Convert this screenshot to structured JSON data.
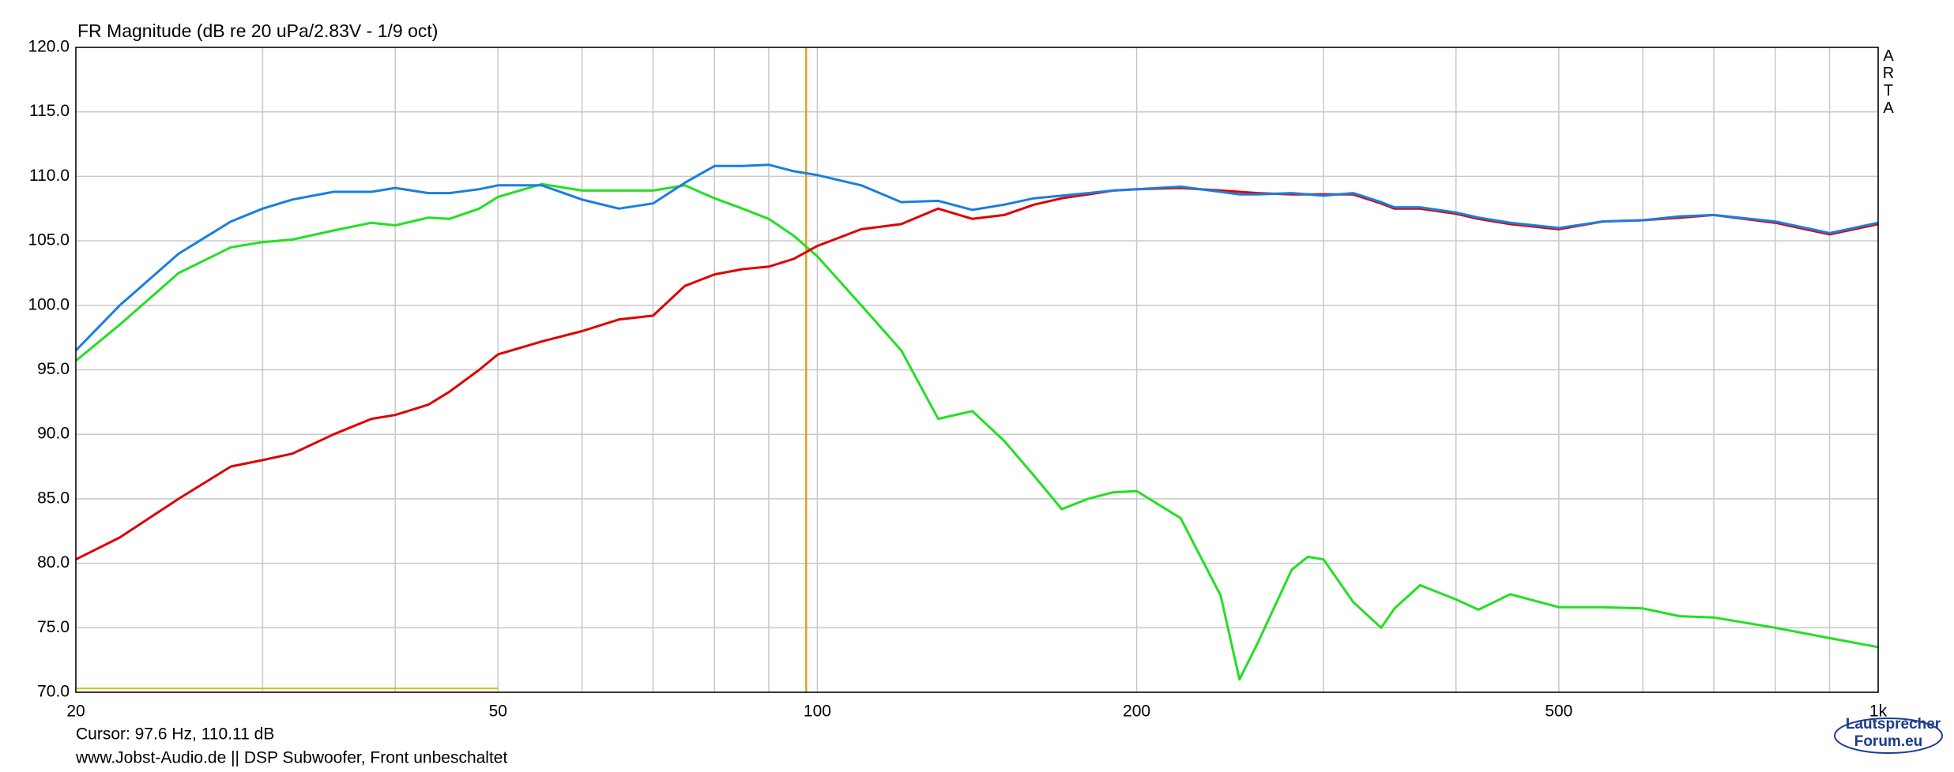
{
  "chart_data": {
    "type": "line",
    "title": "FR Magnitude (dB re 20 uPa/2.83V - 1/9 oct)",
    "x": [
      20,
      22,
      25,
      28,
      30,
      32,
      35,
      38,
      40,
      43,
      45,
      48,
      50,
      55,
      60,
      65,
      70,
      75,
      80,
      85,
      90,
      95,
      100,
      110,
      120,
      130,
      140,
      150,
      160,
      170,
      180,
      190,
      200,
      220,
      240,
      250,
      260,
      280,
      290,
      300,
      320,
      340,
      350,
      370,
      400,
      420,
      450,
      500,
      550,
      600,
      650,
      700,
      800,
      900,
      1000
    ],
    "series": [
      {
        "color": "#e00000",
        "values": [
          80.3,
          82.0,
          85.0,
          87.5,
          88.0,
          88.5,
          90.0,
          91.2,
          91.5,
          92.3,
          93.3,
          95.0,
          96.2,
          97.2,
          98.0,
          98.9,
          99.2,
          101.5,
          102.4,
          102.8,
          103.0,
          103.6,
          104.6,
          105.9,
          106.3,
          107.5,
          106.7,
          107.0,
          107.8,
          108.3,
          108.6,
          108.9,
          109.0,
          109.1,
          108.9,
          108.8,
          108.7,
          108.6,
          108.6,
          108.6,
          108.6,
          107.9,
          107.5,
          107.5,
          107.1,
          106.7,
          106.3,
          105.9,
          106.5,
          106.6,
          106.8,
          107.0,
          106.4,
          105.5,
          106.3
        ]
      },
      {
        "color": "#1a7ee0",
        "values": [
          96.5,
          100.0,
          104.0,
          106.5,
          107.5,
          108.2,
          108.8,
          108.8,
          109.1,
          108.7,
          108.7,
          109.0,
          109.3,
          109.3,
          108.2,
          107.5,
          107.9,
          109.5,
          110.8,
          110.8,
          110.9,
          110.4,
          110.1,
          109.3,
          108.0,
          108.1,
          107.4,
          107.8,
          108.3,
          108.5,
          108.7,
          108.9,
          109.0,
          109.2,
          108.8,
          108.6,
          108.6,
          108.7,
          108.6,
          108.5,
          108.7,
          108.0,
          107.6,
          107.6,
          107.2,
          106.8,
          106.4,
          106.0,
          106.5,
          106.6,
          106.9,
          107.0,
          106.5,
          105.6,
          106.4
        ]
      },
      {
        "color": "#22e022",
        "values": [
          95.7,
          98.5,
          102.5,
          104.5,
          104.9,
          105.1,
          105.8,
          106.4,
          106.2,
          106.8,
          106.7,
          107.5,
          108.4,
          109.4,
          108.9,
          108.9,
          108.9,
          109.3,
          108.3,
          107.5,
          106.7,
          105.4,
          103.8,
          100.0,
          96.5,
          91.2,
          91.8,
          89.5,
          86.8,
          84.2,
          85.0,
          85.5,
          85.6,
          83.5,
          77.5,
          71.0,
          73.8,
          79.5,
          80.5,
          80.3,
          77.0,
          75.0,
          76.5,
          78.3,
          77.2,
          76.4,
          77.6,
          76.6,
          76.6,
          76.5,
          75.9,
          75.8,
          75.0,
          74.2,
          73.5
        ]
      }
    ],
    "log_x": true,
    "xlim": [
      20,
      1000
    ],
    "xticks": [
      20,
      50,
      100,
      200,
      500,
      {
        "value": 1000,
        "label": "1k"
      }
    ],
    "xminor": [
      30,
      40,
      60,
      70,
      80,
      90,
      300,
      400,
      600,
      700,
      800,
      900
    ],
    "ylim": [
      70,
      120
    ],
    "yticks": [
      {
        "value": 70,
        "label": "70.0"
      },
      {
        "value": 75,
        "label": "75.0"
      },
      {
        "value": 80,
        "label": "80.0"
      },
      {
        "value": 85,
        "label": "85.0"
      },
      {
        "value": 90,
        "label": "90.0"
      },
      {
        "value": 95,
        "label": "95.0"
      },
      {
        "value": 100,
        "label": "100.0"
      },
      {
        "value": 105,
        "label": "105.0"
      },
      {
        "value": 110,
        "label": "110.0"
      },
      {
        "value": 115,
        "label": "115.0"
      },
      {
        "value": 120,
        "label": "120.0"
      }
    ],
    "grid": true,
    "cursor": {
      "x": 97.6,
      "color": "#e8a020",
      "text": "Cursor: 97.6 Hz, 110.11 dB"
    },
    "marker": {
      "x": [
        20,
        50
      ],
      "y": 70.3,
      "color": "#c8c800"
    },
    "side_label": "ARTA",
    "footer": "www.Jobst-Audio.de  ||  DSP Subwoofer, Front unbeschaltet",
    "logo": {
      "line1": "Lautsprecher",
      "line2": "Forum.eu"
    }
  }
}
